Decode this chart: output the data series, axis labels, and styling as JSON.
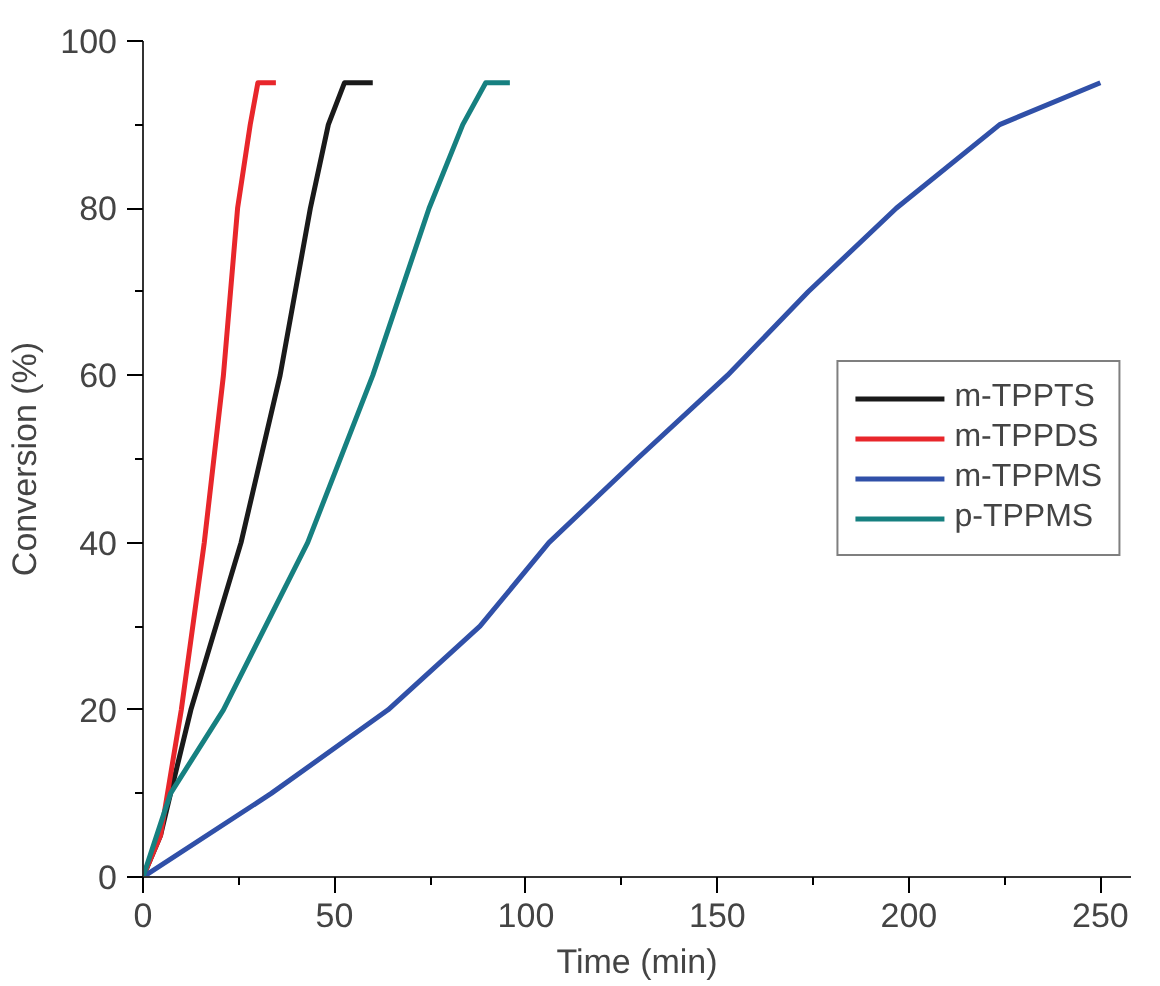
{
  "chart_data": {
    "type": "line",
    "xlabel": "Time (min)",
    "ylabel": "Conversion (%)",
    "xlim": [
      0,
      258
    ],
    "ylim": [
      0,
      100
    ],
    "xticks": [
      0,
      50,
      100,
      150,
      200,
      250
    ],
    "yticks": [
      0,
      20,
      40,
      60,
      80,
      100
    ],
    "grid": false,
    "legend": "right",
    "marker": "none",
    "line_style": "solid",
    "series": [
      {
        "name": "m-TPPTS",
        "color": "#1a1a1a",
        "x": [
          0,
          4.6,
          7.2,
          12.5,
          25.6,
          35.8,
          43.7,
          48.4,
          52.6,
          60
        ],
        "values": [
          0,
          5,
          10,
          20,
          40,
          60,
          80,
          90,
          95,
          95
        ]
      },
      {
        "name": "m-TPPDS",
        "color": "#e8262b",
        "x": [
          0,
          4.6,
          10,
          16,
          21,
          24.7,
          28,
          30,
          34.7
        ],
        "values": [
          0,
          5,
          20,
          40,
          60,
          80,
          90,
          95,
          95
        ]
      },
      {
        "name": "m-TPPMS",
        "color": "#3050a8",
        "x": [
          0,
          33.5,
          64,
          88,
          106,
          129,
          152.6,
          173.7,
          196.7,
          223.7,
          250
        ],
        "values": [
          0,
          10,
          20,
          30,
          40,
          50,
          60,
          70,
          80,
          90,
          95
        ]
      },
      {
        "name": "p-TPPMS",
        "color": "#168080",
        "x": [
          0,
          7.2,
          21,
          43,
          60,
          74.7,
          83.5,
          89.5,
          95.8
        ],
        "values": [
          0,
          10,
          20,
          40,
          60,
          80,
          90,
          95,
          95
        ]
      }
    ]
  }
}
